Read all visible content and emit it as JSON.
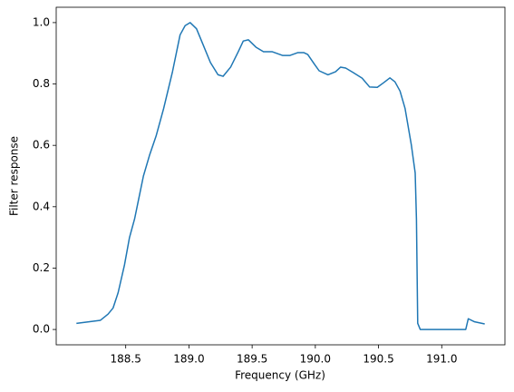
{
  "chart_data": {
    "type": "line",
    "x_label": "Frequency (GHz)",
    "y_label": "Filter response",
    "x": [
      188.11,
      188.3,
      188.36,
      188.4,
      188.44,
      188.49,
      188.53,
      188.57,
      188.6,
      188.64,
      188.69,
      188.74,
      188.8,
      188.87,
      188.93,
      188.97,
      189.01,
      189.06,
      189.11,
      189.17,
      189.23,
      189.27,
      189.33,
      189.39,
      189.43,
      189.47,
      189.53,
      189.59,
      189.66,
      189.74,
      189.8,
      189.86,
      189.91,
      189.94,
      189.99,
      190.03,
      190.1,
      190.16,
      190.2,
      190.24,
      190.3,
      190.37,
      190.43,
      190.49,
      190.54,
      190.59,
      190.63,
      190.67,
      190.71,
      190.76,
      190.79,
      190.8,
      190.81,
      190.83,
      191.19,
      191.21,
      191.26,
      191.34
    ],
    "series": [
      {
        "color": "#1f77b4",
        "values": [
          0.02,
          0.03,
          0.05,
          0.07,
          0.12,
          0.21,
          0.3,
          0.36,
          0.42,
          0.5,
          0.57,
          0.63,
          0.72,
          0.84,
          0.96,
          0.99,
          1.0,
          0.98,
          0.93,
          0.87,
          0.83,
          0.825,
          0.855,
          0.905,
          0.94,
          0.944,
          0.92,
          0.905,
          0.905,
          0.893,
          0.893,
          0.902,
          0.902,
          0.896,
          0.866,
          0.843,
          0.83,
          0.84,
          0.855,
          0.852,
          0.837,
          0.819,
          0.79,
          0.789,
          0.804,
          0.82,
          0.807,
          0.777,
          0.72,
          0.6,
          0.51,
          0.36,
          0.02,
          0.0,
          0.0,
          0.035,
          0.025,
          0.018
        ]
      }
    ],
    "xlim": [
      187.95,
      191.5
    ],
    "xticks": [
      188.5,
      {
        "value": 189.0,
        "label": "189.0"
      },
      189.5,
      {
        "value": 190.0,
        "label": "190.0"
      },
      190.5,
      {
        "value": 191.0,
        "label": "191.0"
      }
    ],
    "ylim": [
      -0.05,
      1.05
    ],
    "yticks": [
      {
        "value": 0.0,
        "label": "0.0"
      },
      0.2,
      0.4,
      0.6,
      0.8,
      {
        "value": 1.0,
        "label": "1.0"
      }
    ],
    "grid": false
  }
}
